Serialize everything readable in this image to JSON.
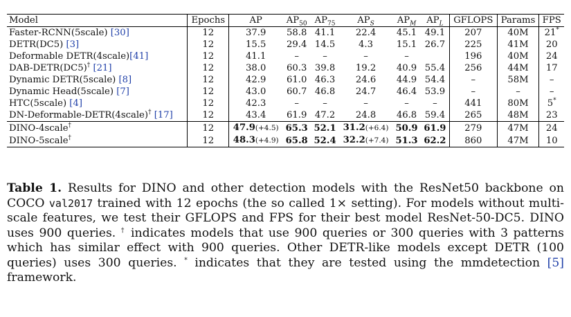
{
  "table": {
    "headers": {
      "model": "Model",
      "epochs": "Epochs",
      "ap": "AP",
      "ap50_main": "AP",
      "ap50_sub": "50",
      "ap75_main": "AP",
      "ap75_sub": "75",
      "aps_main": "AP",
      "aps_sub": "S",
      "apm_main": "AP",
      "apm_sub": "M",
      "apl_main": "AP",
      "apl_sub": "L",
      "gflops": "GFLOPS",
      "params": "Params",
      "fps": "FPS"
    },
    "baselines": [
      {
        "model": "Faster-RCNN(5scale) ",
        "sup": "",
        "cite": "[30]",
        "epochs": "12",
        "ap": "37.9",
        "ap50": "58.8",
        "ap75": "41.1",
        "aps": "22.4",
        "apm": "45.1",
        "apl": "49.1",
        "gflops": "207",
        "params": "40M",
        "fps": "21",
        "fps_sup": "*"
      },
      {
        "model": "DETR(DC5) ",
        "sup": "",
        "cite": "[3]",
        "epochs": "12",
        "ap": "15.5",
        "ap50": "29.4",
        "ap75": "14.5",
        "aps": "4.3",
        "apm": "15.1",
        "apl": "26.7",
        "gflops": "225",
        "params": "41M",
        "fps": "20",
        "fps_sup": ""
      },
      {
        "model": "Deformable DETR(4scale)",
        "sup": "",
        "cite": "[41]",
        "epochs": "12",
        "ap": "41.1",
        "ap50": "–",
        "ap75": "–",
        "aps": "–",
        "apm": "–",
        "apl": "",
        "gflops": "196",
        "params": "40M",
        "fps": "24",
        "fps_sup": ""
      },
      {
        "model": "DAB-DETR(DC5)",
        "sup": "†",
        "cite": " [21]",
        "epochs": "12",
        "ap": "38.0",
        "ap50": "60.3",
        "ap75": "39.8",
        "aps": "19.2",
        "apm": "40.9",
        "apl": "55.4",
        "gflops": "256",
        "params": "44M",
        "fps": "17",
        "fps_sup": ""
      },
      {
        "model": "Dynamic DETR(5scale) ",
        "sup": "",
        "cite": "[8]",
        "epochs": "12",
        "ap": "42.9",
        "ap50": "61.0",
        "ap75": "46.3",
        "aps": "24.6",
        "apm": "44.9",
        "apl": "54.4",
        "gflops": "–",
        "params": "58M",
        "fps": "–",
        "fps_sup": ""
      },
      {
        "model": "Dynamic Head(5scale) ",
        "sup": "",
        "cite": "[7]",
        "epochs": "12",
        "ap": "43.0",
        "ap50": "60.7",
        "ap75": "46.8",
        "aps": "24.7",
        "apm": "46.4",
        "apl": "53.9",
        "gflops": "–",
        "params": "–",
        "fps": "–",
        "fps_sup": ""
      },
      {
        "model": "HTC(5scale) ",
        "sup": "",
        "cite": "[4]",
        "epochs": "12",
        "ap": "42.3",
        "ap50": "–",
        "ap75": "–",
        "aps": "–",
        "apm": "–",
        "apl": "–",
        "gflops": "441",
        "params": "80M",
        "fps": "5",
        "fps_sup": "*"
      },
      {
        "model": "DN-Deformable-DETR(4scale)",
        "sup": "†",
        "cite": " [17]",
        "epochs": "12",
        "ap": "43.4",
        "ap50": "61.9",
        "ap75": "47.2",
        "aps": "24.8",
        "apm": "46.8",
        "apl": "59.4",
        "gflops": "265",
        "params": "48M",
        "fps": "23",
        "fps_sup": ""
      }
    ],
    "dino": [
      {
        "model": "DINO-4scale",
        "sup": "†",
        "epochs": "12",
        "ap": "47.9",
        "ap_gain": "(+4.5)",
        "ap50": "65.3",
        "ap75": "52.1",
        "aps": "31.2",
        "aps_gain": "(+6.4)",
        "apm": "50.9",
        "apl": "61.9",
        "gflops": "279",
        "params": "47M",
        "fps": "24"
      },
      {
        "model": "DINO-5scale",
        "sup": "†",
        "epochs": "12",
        "ap": "48.3",
        "ap_gain": "(+4.9)",
        "ap50": "65.8",
        "ap75": "52.4",
        "aps": "32.2",
        "aps_gain": "(+7.4)",
        "apm": "51.3",
        "apl": "62.2",
        "gflops": "860",
        "params": "47M",
        "fps": "10"
      }
    ]
  },
  "caption": {
    "label": "Table 1.",
    "t1": " Results for DINO and other detection models with the ResNet50 backbone on COCO ",
    "code": "val2017",
    "t2": " trained with 12 epochs (the so called 1× setting). For models without multi-scale features, we test their GFLOPS and FPS for their best model ResNet-50-DC5. DINO uses 900 queries. ",
    "dagger": "†",
    "t3": " indicates models that use 900 queries or 300 queries with 3 patterns which has similar effect with 900 queries. Other DETR-like models except DETR (100 queries) uses 300 queries. ",
    "star": "*",
    "t4": " indicates that they are tested using the mmdetection ",
    "cite": "[5]",
    "t5": " framework."
  }
}
